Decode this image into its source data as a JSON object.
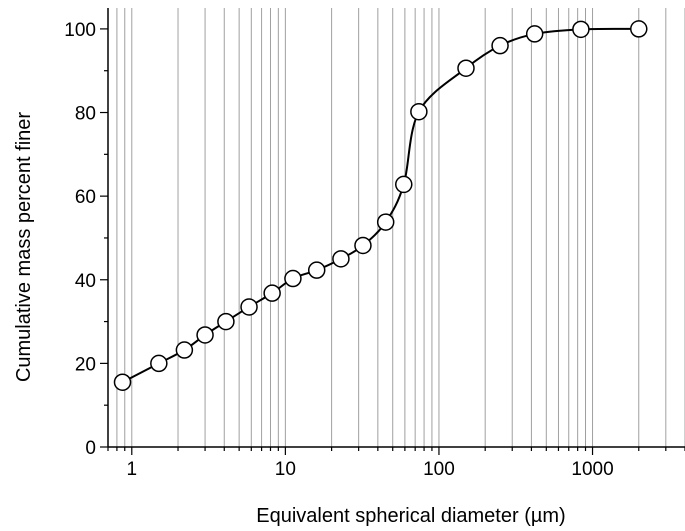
{
  "chart_data": {
    "type": "scatter",
    "title": "",
    "xlabel": "Equivalent spherical diameter  (µm)",
    "ylabel": "Cumulative mass percent finer",
    "xscale": "log",
    "xlim": [
      0.7,
      4000
    ],
    "ylim": [
      0,
      105
    ],
    "grid": "x-log-gridlines",
    "legend": "none",
    "x_ticks": [
      1,
      10,
      100,
      1000
    ],
    "x_tick_labels": [
      "1",
      "10",
      "100",
      "1000"
    ],
    "y_ticks": [
      0,
      20,
      40,
      60,
      80,
      100
    ],
    "y_tick_labels": [
      "0",
      "20",
      "40",
      "60",
      "80",
      "100"
    ],
    "series": [
      {
        "marker": "open-circle",
        "line": "smooth",
        "x": [
          0.87,
          1.5,
          2.2,
          3.0,
          4.1,
          5.8,
          8.2,
          11.2,
          16,
          23,
          32,
          45,
          59,
          74,
          150,
          250,
          420,
          840,
          2000
        ],
        "y": [
          15.5,
          20,
          23.2,
          26.8,
          30,
          33.5,
          36.8,
          40.3,
          42.3,
          45,
          48.2,
          53.8,
          62.8,
          80.2,
          90.6,
          96,
          98.8,
          99.9,
          100
        ]
      }
    ]
  },
  "colors": {
    "line": "#000000",
    "marker_fill": "#ffffff",
    "grid": "#a0a0a0"
  }
}
